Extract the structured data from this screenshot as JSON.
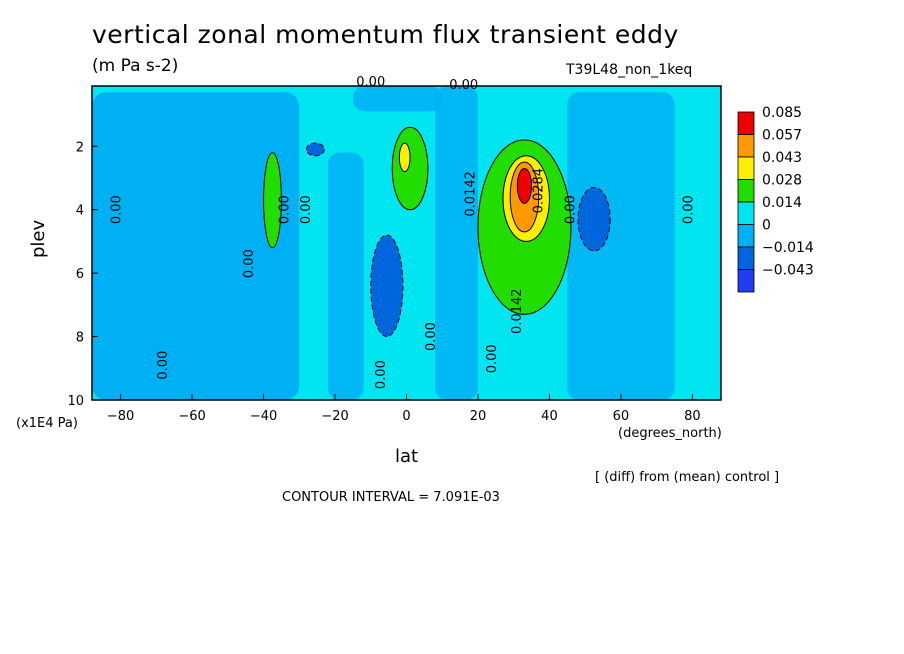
{
  "chart_data": {
    "type": "heatmap",
    "title": "vertical zonal momentum flux transient eddy",
    "units": "(m Pa s-2)",
    "run_id": "T39L48_non_1keq",
    "xlabel": "lat",
    "x_units": "(degrees_north)",
    "ylabel": "plev",
    "y_units": "(x1E4 Pa)",
    "note": "[ (diff) from (mean) control ]",
    "contour_interval": "CONTOUR INTERVAL = 7.091E-03",
    "xlim": [
      -88,
      88
    ],
    "ylim": [
      10,
      0.1
    ],
    "x_ticks": [
      -80,
      -60,
      -40,
      -20,
      0,
      20,
      40,
      60,
      80
    ],
    "y_ticks": [
      2,
      4,
      6,
      8,
      10
    ],
    "colorbar": {
      "labels": [
        "0.085",
        "0.057",
        "0.043",
        "0.028",
        "0.014",
        "0",
        "−0.014",
        "−0.043"
      ],
      "colors": [
        "#ee0000",
        "#ff9900",
        "#ffee00",
        "#22dd00",
        "#00e5f0",
        "#00b0f5",
        "#0066dd",
        "#1f3ef0"
      ]
    },
    "contour_labels": [
      {
        "text": "0.00",
        "x": -80,
        "y": 4.0
      },
      {
        "text": "0.00",
        "x": -67,
        "y": 8.9
      },
      {
        "text": "0.00",
        "x": -43,
        "y": 5.7
      },
      {
        "text": "0.00",
        "x": -33,
        "y": 4.0
      },
      {
        "text": "0.00",
        "x": -27,
        "y": 4.0
      },
      {
        "text": "0.00",
        "x": -6,
        "y": 9.2
      },
      {
        "text": "0.00",
        "x": 8,
        "y": 8.0
      },
      {
        "text": "0.00",
        "x": 25,
        "y": 8.7
      },
      {
        "text": "0.0142",
        "x": 19,
        "y": 3.5
      },
      {
        "text": "0.0142",
        "x": 32,
        "y": 7.2
      },
      {
        "text": "0.0284",
        "x": 38,
        "y": 3.4
      },
      {
        "text": "0.00",
        "x": 47,
        "y": 4.0
      },
      {
        "text": "0.00",
        "x": 80,
        "y": 4.0
      },
      {
        "text": "0.00",
        "x": -10,
        "y": 0.1
      },
      {
        "text": "0.00",
        "x": 16,
        "y": 0.2
      }
    ],
    "features": [
      {
        "level": 1,
        "x": [
          -88,
          88
        ],
        "y": [
          0.1,
          10
        ],
        "desc": "background"
      },
      {
        "level": 0,
        "x": [
          -88,
          -30
        ],
        "y": [
          0.3,
          10
        ]
      },
      {
        "level": 2,
        "x": [
          -40,
          -35
        ],
        "y": [
          2.2,
          5.2
        ]
      },
      {
        "level": 2,
        "x": [
          -4,
          6
        ],
        "y": [
          1.4,
          4.0
        ]
      },
      {
        "level": 3,
        "x": [
          -2,
          1
        ],
        "y": [
          1.9,
          2.8
        ]
      },
      {
        "level": 2,
        "x": [
          20,
          46
        ],
        "y": [
          1.8,
          7.3
        ]
      },
      {
        "level": 3,
        "x": [
          27,
          40
        ],
        "y": [
          2.3,
          5.0
        ]
      },
      {
        "level": 4,
        "x": [
          29,
          37
        ],
        "y": [
          2.5,
          4.7
        ]
      },
      {
        "level": 6,
        "x": [
          31,
          35
        ],
        "y": [
          2.7,
          3.8
        ]
      },
      {
        "level": -1,
        "x": [
          -10,
          -1
        ],
        "y": [
          4.8,
          8.0
        ]
      },
      {
        "level": -1,
        "x": [
          48,
          57
        ],
        "y": [
          3.3,
          5.3
        ]
      },
      {
        "level": -1,
        "x": [
          -28,
          -23
        ],
        "y": [
          1.9,
          2.3
        ]
      }
    ]
  }
}
